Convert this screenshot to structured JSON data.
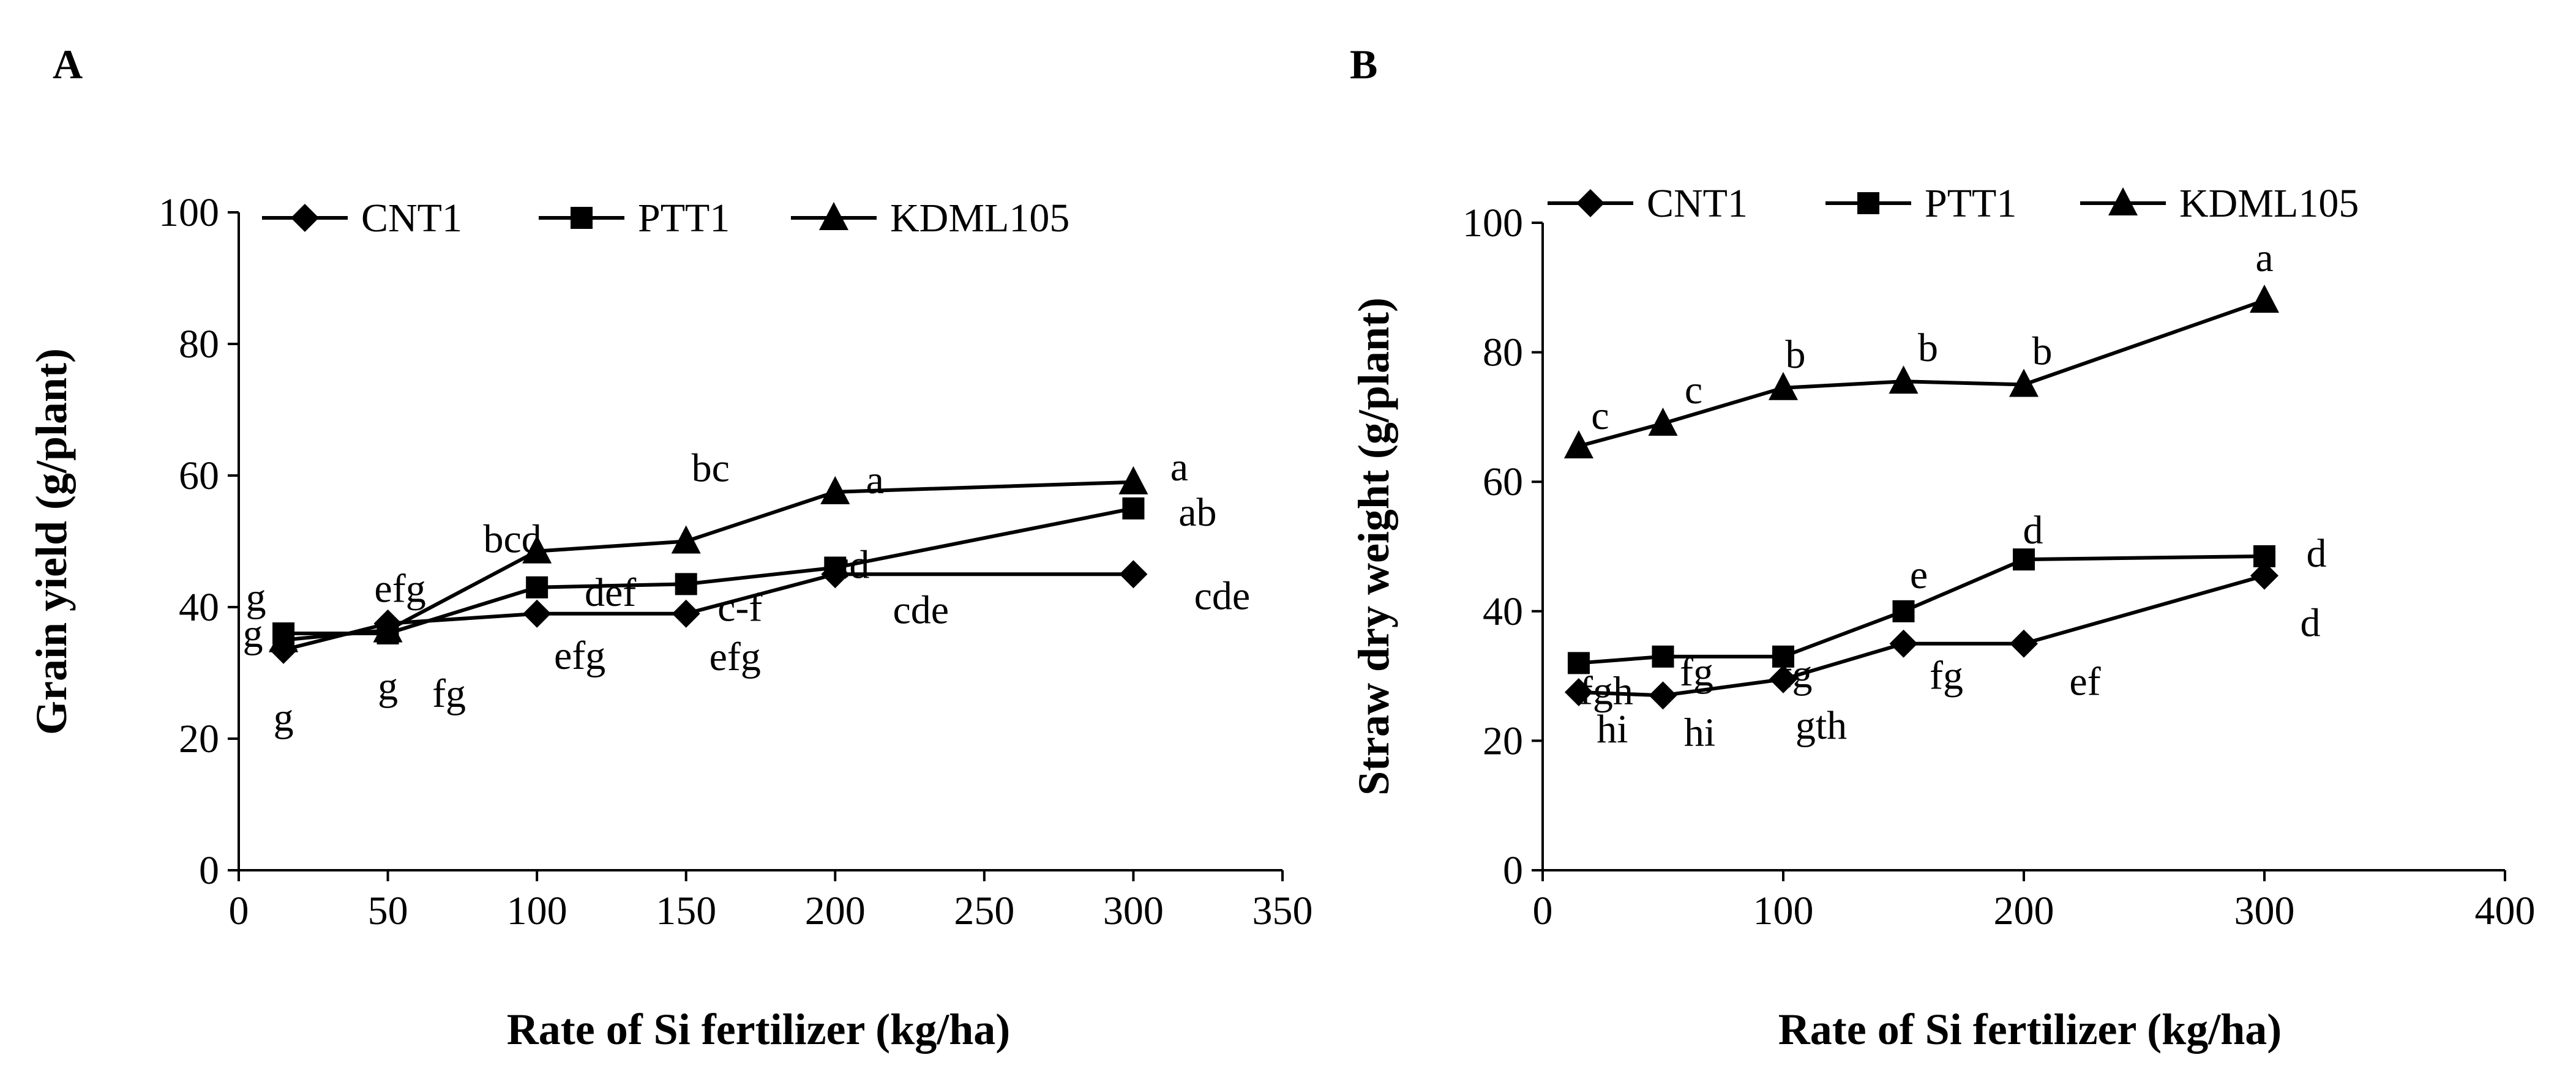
{
  "chart_data": [
    {
      "panel_label": "A",
      "type": "line",
      "title": "",
      "xlabel": "Rate of Si fertilizer (kg/ha)",
      "ylabel": "Grain yield (g/plant)",
      "xlim": [
        0,
        350
      ],
      "ylim": [
        0,
        100
      ],
      "xticks": [
        0,
        50,
        100,
        150,
        200,
        250,
        300,
        350
      ],
      "yticks": [
        0,
        20,
        40,
        60,
        80,
        100
      ],
      "x": [
        15,
        50,
        100,
        150,
        200,
        300
      ],
      "grid": false,
      "legend_position": "top",
      "series": [
        {
          "name": "CNT1",
          "marker": "diamond",
          "values": [
            33.5,
            37.5,
            39,
            39,
            45,
            45
          ],
          "labels": [
            "g",
            "g",
            "efg",
            "efg",
            "cde",
            "cde"
          ]
        },
        {
          "name": "PTT1",
          "marker": "square",
          "values": [
            36,
            36,
            43,
            43.5,
            46,
            55
          ],
          "labels": [
            "g",
            "fg",
            "def",
            "c-f",
            "cd",
            "ab"
          ]
        },
        {
          "name": "KDML105",
          "marker": "triangle",
          "values": [
            35,
            36.5,
            48.5,
            50,
            57.5,
            59
          ],
          "labels": [
            "g",
            "efg",
            "bcd",
            "bc",
            "a",
            "a"
          ]
        }
      ]
    },
    {
      "panel_label": "B",
      "type": "line",
      "title": "",
      "xlabel": "Rate of Si fertilizer  (kg/ha)",
      "ylabel": "Straw dry weight (g/plant)",
      "xlim": [
        0,
        400
      ],
      "ylim": [
        0,
        100
      ],
      "xticks": [
        0,
        100,
        200,
        300,
        400
      ],
      "yticks": [
        0,
        20,
        40,
        60,
        80,
        100
      ],
      "x": [
        15,
        50,
        100,
        150,
        200,
        300
      ],
      "grid": false,
      "legend_position": "top",
      "series": [
        {
          "name": "CNT1",
          "marker": "diamond",
          "values": [
            27.5,
            27,
            29.5,
            35,
            35,
            45.5
          ],
          "labels": [
            "hi",
            "hi",
            "gth",
            "fg",
            "ef",
            "d"
          ]
        },
        {
          "name": "PTT1",
          "marker": "square",
          "values": [
            32,
            33,
            33,
            40,
            48,
            48.5
          ],
          "labels": [
            "fgh",
            "fg",
            "fg",
            "e",
            "d",
            "d"
          ]
        },
        {
          "name": "KDML105",
          "marker": "triangle",
          "values": [
            65.5,
            69,
            74.5,
            75.5,
            75,
            88
          ],
          "labels": [
            "c",
            "c",
            "b",
            "b",
            "b",
            "a"
          ]
        }
      ]
    }
  ]
}
